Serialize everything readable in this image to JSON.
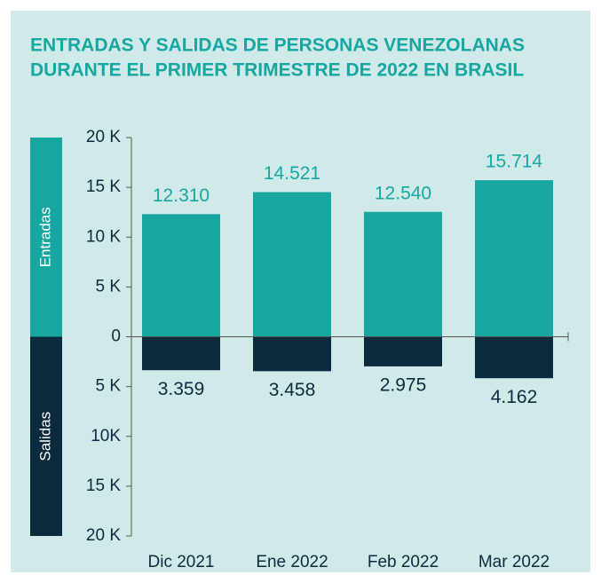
{
  "chart_data": {
    "type": "diverging_bar",
    "title": [
      "ENTRADAS Y SALIDAS DE PERSONAS VENEZOLANAS",
      "DURANTE EL PRIMER TRIMESTRE DE 2022 EN BRASIL"
    ],
    "categories": [
      "Dic 2021",
      "Ene 2022",
      "Feb 2022",
      "Mar 2022"
    ],
    "series": [
      {
        "name": "Entradas",
        "color": "#17a6a0",
        "values": [
          12310,
          14521,
          12540,
          15714
        ],
        "value_labels": [
          "12.310",
          "14.521",
          "12.540",
          "15.714"
        ]
      },
      {
        "name": "Salidas",
        "color": "#0c2a3d",
        "values": [
          -3359,
          -3458,
          -2975,
          -4162
        ],
        "value_labels": [
          "3.359",
          "3.458",
          "2.975",
          "4.162"
        ]
      }
    ],
    "ylim": [
      -20000,
      20000
    ],
    "yticks": [
      {
        "value": 20000,
        "label": "20 K"
      },
      {
        "value": 15000,
        "label": "15 K"
      },
      {
        "value": 10000,
        "label": "10 K"
      },
      {
        "value": 5000,
        "label": "5 K"
      },
      0,
      {
        "value": -5000,
        "label": "5 K"
      },
      {
        "value": -10000,
        "label": "10K"
      },
      {
        "value": -15000,
        "label": "15 K"
      },
      {
        "value": -20000,
        "label": "20 K"
      }
    ]
  }
}
